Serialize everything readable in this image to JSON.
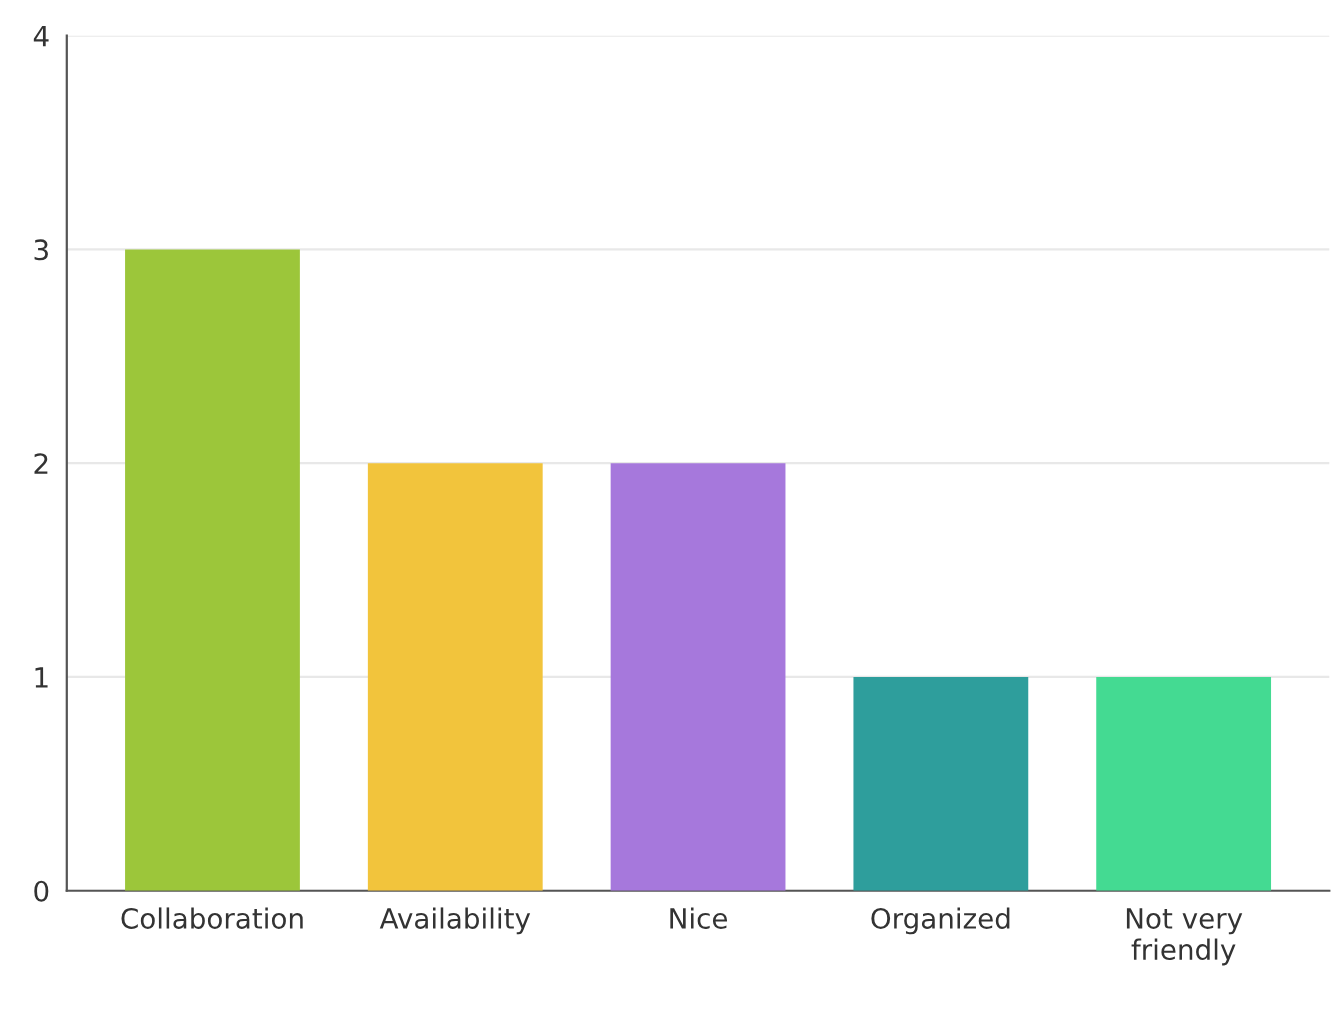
{
  "chart_data": {
    "type": "bar",
    "categories": [
      "Collaboration",
      "Availability",
      "Nice",
      "Organized",
      "Not very friendly"
    ],
    "values": [
      3,
      2,
      2,
      1,
      1
    ],
    "colors": [
      "#9cc63a",
      "#f2c43c",
      "#a678dc",
      "#2e9e9c",
      "#44da92"
    ],
    "ylim": [
      0,
      4
    ],
    "yticks": [
      0,
      1,
      2,
      3,
      4
    ],
    "grid": "y",
    "legend": false
  }
}
